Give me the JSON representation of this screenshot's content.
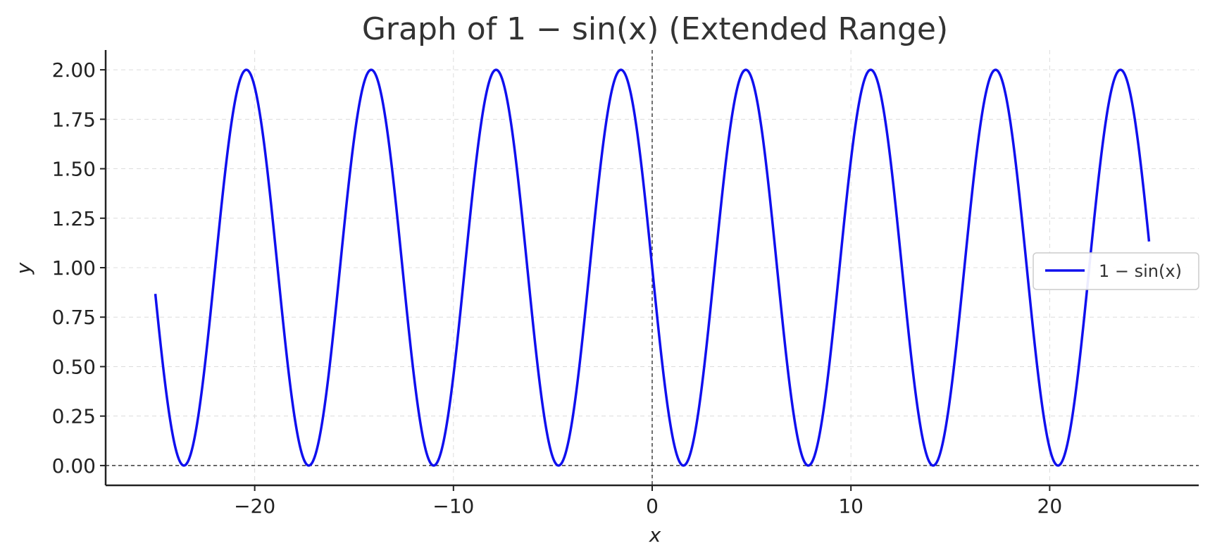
{
  "chart_data": {
    "type": "line",
    "title": "Graph of 1 − sin(x) (Extended Range)",
    "xlabel": "x",
    "ylabel": "y",
    "xlim": [
      -27.5,
      27.5
    ],
    "ylim": [
      -0.1,
      2.1
    ],
    "x_ticks": [
      -20,
      -10,
      0,
      10,
      20
    ],
    "x_tick_labels": [
      "−20",
      "−10",
      "0",
      "10",
      "20"
    ],
    "y_ticks": [
      0,
      0.25,
      0.5,
      0.75,
      1.0,
      1.25,
      1.5,
      1.75,
      2.0
    ],
    "y_tick_labels": [
      "0.00",
      "0.25",
      "0.50",
      "0.75",
      "1.00",
      "1.25",
      "1.50",
      "1.75",
      "2.00"
    ],
    "grid": true,
    "reference_lines": {
      "horizontal": 0,
      "vertical": 0
    },
    "legend": {
      "position": "right",
      "entries": [
        "1 − sin(x)"
      ]
    },
    "series": [
      {
        "name": "1 − sin(x)",
        "function": "1 - sin(x)",
        "x_range": [
          -25,
          25
        ],
        "color": "#1010ee"
      }
    ]
  }
}
